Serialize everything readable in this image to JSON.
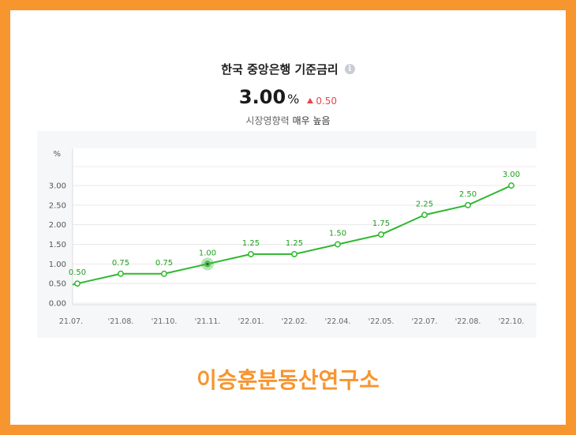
{
  "header": {
    "title": "한국 중앙은행 기준금리",
    "info_icon": "info-icon",
    "rate_value": "3.00",
    "rate_unit": "%",
    "change_value": "0.50",
    "change_icon": "triangle-up-icon",
    "impact_label": "시장영향력",
    "impact_value": "매우 높음"
  },
  "brand": {
    "text": "이승훈분동산연구소"
  },
  "colors": {
    "frame": "#f7952f",
    "line": "#2db82d",
    "change": "#e5484d",
    "brand": "#f7952f"
  },
  "chart_data": {
    "type": "line",
    "y_unit_label": "%",
    "categories": [
      "'21.07.",
      "'21.08.",
      "'21.10.",
      "'21.11.",
      "'22.01.",
      "'22.02.",
      "'22.04.",
      "'22.05.",
      "'22.07.",
      "'22.08.",
      "'22.10."
    ],
    "category_labels_shown": [
      "21.07.",
      "'21.08.",
      "'21.10.",
      "'21.11.",
      "'22.01.",
      "'22.02.",
      "'22.04.",
      "'22.05.",
      "'22.07.",
      "'22.08.",
      "'22.10."
    ],
    "values": [
      0.5,
      0.75,
      0.75,
      1.0,
      1.25,
      1.25,
      1.5,
      1.75,
      2.25,
      2.5,
      3.0
    ],
    "value_labels": [
      "0.50",
      "0.75",
      "0.75",
      "1.00",
      "1.25",
      "1.25",
      "1.50",
      "1.75",
      "2.25",
      "2.50",
      "3.00"
    ],
    "y_ticks": [
      "0.00",
      "0.50",
      "1.00",
      "1.50",
      "2.00",
      "2.50",
      "3.00"
    ],
    "ylim": [
      0,
      3
    ],
    "highlighted_index": 3,
    "grid": true,
    "legend": "none"
  }
}
